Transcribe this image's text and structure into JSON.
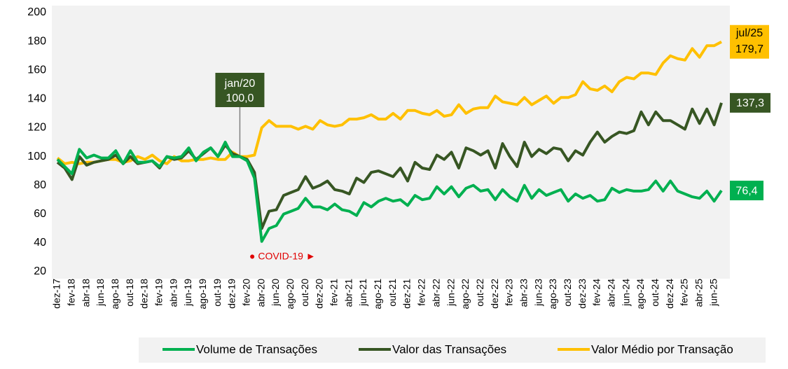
{
  "chart_data": {
    "type": "line",
    "categories": [
      "dez-17",
      null,
      "fev-18",
      null,
      "abr-18",
      null,
      "jun-18",
      null,
      "ago-18",
      null,
      "out-18",
      null,
      "dez-18",
      null,
      "fev-19",
      null,
      "abr-19",
      null,
      "jun-19",
      null,
      "ago-19",
      null,
      "out-19",
      null,
      "dez-19",
      null,
      "fev-20",
      null,
      "abr-20",
      null,
      "jun-20",
      null,
      "ago-20",
      null,
      "out-20",
      null,
      "dez-20",
      null,
      "fev-21",
      null,
      "abr-21",
      null,
      "jun-21",
      null,
      "ago-21",
      null,
      "out-21",
      null,
      "dez-21",
      null,
      "fev-22",
      null,
      "abr-22",
      null,
      "jun-22",
      null,
      "ago-22",
      null,
      "out-22",
      null,
      "dez-22",
      null,
      "fev-23",
      null,
      "abr-23",
      null,
      "jun-23",
      null,
      "ago-23",
      null,
      "out-23",
      null,
      "dez-23",
      null,
      "fev-24",
      null,
      "abr-24",
      null,
      "jun-24",
      null,
      "ago-24",
      null,
      "out-24",
      null,
      "dez-24",
      null,
      "fev-25",
      null,
      "abr-25",
      null,
      "jun-25",
      null
    ],
    "series": [
      {
        "name": "Volume de Transações",
        "color": "#00b050",
        "values": [
          98,
          93,
          88,
          105,
          99,
          101,
          99,
          99,
          104,
          95,
          104,
          96,
          96,
          97,
          93,
          100,
          99,
          100,
          106,
          97,
          103,
          106,
          100,
          110,
          100,
          100,
          97,
          85,
          41,
          50,
          52,
          60,
          62,
          64,
          71,
          65,
          65,
          63,
          67,
          63,
          62,
          59,
          68,
          65,
          69,
          71,
          69,
          70,
          66,
          73,
          70,
          71,
          79,
          74,
          79,
          72,
          78,
          80,
          76,
          77,
          70,
          77,
          72,
          69,
          80,
          71,
          77,
          73,
          75,
          77,
          69,
          74,
          71,
          73,
          69,
          70,
          78,
          75,
          77,
          76,
          76,
          77,
          83,
          76,
          83,
          76,
          74,
          72,
          71,
          76,
          69,
          76.4
        ],
        "value_labels": [
          null,
          null,
          null,
          null,
          null,
          null,
          null,
          null,
          null,
          null,
          null,
          null,
          null,
          null,
          null,
          null,
          null,
          null,
          null,
          null,
          null,
          null,
          null,
          null,
          null,
          null,
          null,
          null,
          null,
          null,
          null,
          null,
          null,
          null,
          null,
          null,
          null,
          null,
          null,
          null,
          null,
          null,
          null,
          null,
          null,
          null,
          null,
          null,
          null,
          null,
          null,
          null,
          null,
          null,
          null,
          null,
          null,
          null,
          null,
          null,
          null,
          null,
          null,
          null,
          null,
          null,
          null,
          null,
          null,
          null,
          null,
          null,
          null,
          null,
          null,
          null,
          null,
          null,
          null,
          null,
          null,
          null,
          null,
          null,
          null,
          null,
          null,
          null,
          null,
          null,
          null,
          "76,4"
        ]
      },
      {
        "name": "Valor das Transações",
        "color": "#375623",
        "values": [
          96,
          92,
          84,
          100,
          94,
          96,
          97,
          98,
          101,
          95,
          100,
          95,
          96,
          97,
          92,
          100,
          98,
          99,
          104,
          98,
          102,
          106,
          100,
          108,
          102,
          100,
          98,
          89,
          50,
          62,
          63,
          73,
          75,
          77,
          86,
          78,
          80,
          83,
          77,
          76,
          74,
          85,
          82,
          89,
          90,
          88,
          86,
          92,
          83,
          96,
          92,
          91,
          101,
          98,
          103,
          92,
          106,
          104,
          101,
          104,
          92,
          109,
          100,
          93,
          110,
          100,
          105,
          102,
          106,
          105,
          97,
          104,
          101,
          110,
          117,
          110,
          114,
          117,
          116,
          118,
          131,
          122,
          131,
          125,
          125,
          122,
          119,
          133,
          123,
          133,
          122,
          137.3
        ],
        "value_labels": [
          null,
          null,
          null,
          null,
          null,
          null,
          null,
          null,
          null,
          null,
          null,
          null,
          null,
          null,
          null,
          null,
          null,
          null,
          null,
          null,
          null,
          null,
          null,
          null,
          null,
          null,
          null,
          null,
          null,
          null,
          null,
          null,
          null,
          null,
          null,
          null,
          null,
          null,
          null,
          null,
          null,
          null,
          null,
          null,
          null,
          null,
          null,
          null,
          null,
          null,
          null,
          null,
          null,
          null,
          null,
          null,
          null,
          null,
          null,
          null,
          null,
          null,
          null,
          null,
          null,
          null,
          null,
          null,
          null,
          null,
          null,
          null,
          null,
          null,
          null,
          null,
          null,
          null,
          null,
          null,
          null,
          null,
          null,
          null,
          null,
          null,
          null,
          null,
          null,
          null,
          null,
          "137,3"
        ]
      },
      {
        "name": "Valor Médio por Transação",
        "color": "#ffc000",
        "values": [
          99,
          95,
          96,
          95,
          96,
          96,
          97,
          98,
          98,
          96,
          97,
          100,
          98,
          101,
          97,
          95,
          100,
          97,
          97,
          98,
          98,
          99,
          98,
          98,
          103,
          100,
          100,
          101,
          120,
          125,
          121,
          121,
          121,
          119,
          121,
          119,
          125,
          122,
          121,
          122,
          126,
          126,
          127,
          129,
          126,
          126,
          130,
          126,
          132,
          132,
          130,
          129,
          132,
          128,
          129,
          136,
          130,
          133,
          134,
          134,
          142,
          138,
          137,
          136,
          141,
          136,
          139,
          142,
          137,
          141,
          141,
          143,
          152,
          147,
          146,
          149,
          145,
          152,
          155,
          154,
          158,
          158,
          157,
          165,
          170,
          168,
          167,
          175,
          169,
          177,
          177,
          179.7
        ],
        "value_labels": [
          null,
          null,
          null,
          null,
          null,
          null,
          null,
          null,
          null,
          null,
          null,
          null,
          null,
          null,
          null,
          null,
          null,
          null,
          null,
          null,
          null,
          null,
          null,
          null,
          null,
          null,
          null,
          null,
          null,
          null,
          null,
          null,
          null,
          null,
          null,
          null,
          null,
          null,
          null,
          null,
          null,
          null,
          null,
          null,
          null,
          null,
          null,
          null,
          null,
          null,
          null,
          null,
          null,
          null,
          null,
          null,
          null,
          null,
          null,
          null,
          null,
          null,
          null,
          null,
          null,
          null,
          null,
          null,
          null,
          null,
          null,
          null,
          null,
          null,
          null,
          null,
          null,
          null,
          null,
          null,
          null,
          null,
          null,
          null,
          null,
          null,
          null,
          null,
          null,
          null,
          null,
          "179,7"
        ]
      }
    ],
    "ylim": [
      20,
      200
    ],
    "yticks": [
      20,
      40,
      60,
      80,
      100,
      120,
      140,
      160,
      180,
      200
    ],
    "grid": false,
    "annotations": {
      "start_period": "jan/20",
      "start_value": {
        "value": 100,
        "label": "100,0"
      },
      "end_period": "jul/25",
      "event": "● COVID-19 ►"
    },
    "legend": "bottom"
  }
}
